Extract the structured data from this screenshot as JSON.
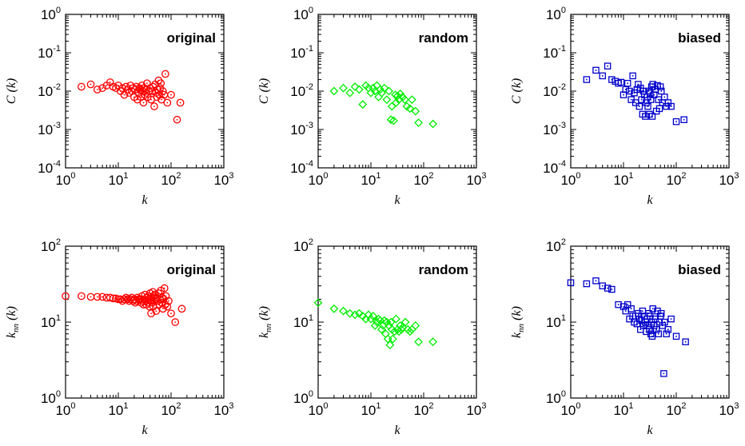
{
  "chart_data": [
    {
      "type": "scatter",
      "title": "original",
      "xlabel": "k",
      "ylabel": "C (k)",
      "xscale": "log",
      "yscale": "log",
      "xlim": [
        1,
        1000
      ],
      "ylim": [
        0.0001,
        1
      ],
      "x_tick_labels": [
        "10^0",
        "10^1",
        "10^2",
        "10^3"
      ],
      "y_tick_labels": [
        "10^-4",
        "10^-3",
        "10^-2",
        "10^-1",
        "10^0"
      ],
      "marker": "circle",
      "color": "#ff0000",
      "title_placement": "top-right",
      "series": [
        {
          "x": [
            2,
            3,
            4,
            5,
            6,
            7,
            8,
            9,
            10,
            11,
            12,
            13,
            14,
            15,
            16,
            17,
            18,
            19,
            20,
            21,
            22,
            23,
            24,
            25,
            26,
            27,
            28,
            29,
            30,
            31,
            32,
            33,
            34,
            35,
            36,
            38,
            40,
            42,
            44,
            46,
            48,
            50,
            52,
            54,
            56,
            58,
            60,
            62,
            64,
            66,
            70,
            74,
            78,
            85,
            100,
            130,
            150
          ],
          "y": [
            0.013,
            0.015,
            0.011,
            0.012,
            0.014,
            0.017,
            0.013,
            0.012,
            0.014,
            0.01,
            0.012,
            0.008,
            0.013,
            0.011,
            0.009,
            0.014,
            0.01,
            0.012,
            0.007,
            0.011,
            0.013,
            0.006,
            0.009,
            0.012,
            0.011,
            0.007,
            0.014,
            0.01,
            0.005,
            0.012,
            0.008,
            0.011,
            0.009,
            0.016,
            0.007,
            0.01,
            0.012,
            0.006,
            0.01,
            0.013,
            0.004,
            0.015,
            0.009,
            0.007,
            0.011,
            0.019,
            0.008,
            0.012,
            0.016,
            0.006,
            0.01,
            0.008,
            0.028,
            0.005,
            0.008,
            0.0018,
            0.005
          ]
        }
      ]
    },
    {
      "type": "scatter",
      "title": "random",
      "xlabel": "k",
      "ylabel": "C (k)",
      "xscale": "log",
      "yscale": "log",
      "xlim": [
        1,
        1000
      ],
      "ylim": [
        0.0001,
        1
      ],
      "x_tick_labels": [
        "10^0",
        "10^1",
        "10^2",
        "10^3"
      ],
      "y_tick_labels": [
        "10^-4",
        "10^-3",
        "10^-2",
        "10^-1",
        "10^0"
      ],
      "marker": "diamond",
      "color": "#00ee00",
      "title_placement": "top-right",
      "series": [
        {
          "x": [
            2,
            3,
            4,
            5,
            6,
            7,
            8,
            9,
            10,
            11,
            12,
            13,
            14,
            15,
            16,
            18,
            20,
            22,
            24,
            25,
            27,
            29,
            30,
            32,
            34,
            36,
            40,
            44,
            48,
            55,
            60,
            70,
            80,
            150
          ],
          "y": [
            0.01,
            0.012,
            0.009,
            0.013,
            0.011,
            0.0045,
            0.014,
            0.012,
            0.009,
            0.012,
            0.01,
            0.014,
            0.007,
            0.011,
            0.009,
            0.012,
            0.006,
            0.01,
            0.0018,
            0.004,
            0.0017,
            0.008,
            0.005,
            0.0075,
            0.006,
            0.0085,
            0.007,
            0.006,
            0.004,
            0.0035,
            0.006,
            0.003,
            0.0015,
            0.0014
          ]
        }
      ]
    },
    {
      "type": "scatter",
      "title": "biased",
      "xlabel": "k",
      "ylabel": "C (k)",
      "xscale": "log",
      "yscale": "log",
      "xlim": [
        1,
        1000
      ],
      "ylim": [
        0.0001,
        1
      ],
      "x_tick_labels": [
        "10^0",
        "10^1",
        "10^2",
        "10^3"
      ],
      "y_tick_labels": [
        "10^-4",
        "10^-3",
        "10^-2",
        "10^-1",
        "10^0"
      ],
      "marker": "square",
      "color": "#0000cc",
      "title_placement": "top-right",
      "series": [
        {
          "x": [
            2,
            3,
            4,
            5,
            6,
            7,
            8,
            9,
            10,
            11,
            12,
            13,
            14,
            15,
            16,
            17,
            18,
            19,
            20,
            21,
            22,
            23,
            24,
            25,
            26,
            27,
            28,
            29,
            30,
            31,
            32,
            33,
            34,
            35,
            36,
            38,
            40,
            42,
            44,
            46,
            48,
            50,
            52,
            55,
            60,
            65,
            70,
            80,
            100,
            140
          ],
          "y": [
            0.02,
            0.035,
            0.025,
            0.045,
            0.02,
            0.018,
            0.016,
            0.017,
            0.008,
            0.011,
            0.016,
            0.01,
            0.006,
            0.025,
            0.009,
            0.005,
            0.011,
            0.015,
            0.004,
            0.012,
            0.006,
            0.0025,
            0.01,
            0.008,
            0.0022,
            0.005,
            0.007,
            0.004,
            0.01,
            0.0025,
            0.009,
            0.006,
            0.013,
            0.0022,
            0.015,
            0.008,
            0.011,
            0.003,
            0.014,
            0.006,
            0.0035,
            0.013,
            0.01,
            0.005,
            0.007,
            0.004,
            0.005,
            0.004,
            0.0016,
            0.0018
          ]
        }
      ]
    },
    {
      "type": "scatter",
      "title": "original",
      "xlabel": "k",
      "ylabel": "k_nn (k)",
      "xscale": "log",
      "yscale": "log",
      "xlim": [
        1,
        1000
      ],
      "ylim": [
        1,
        100
      ],
      "x_tick_labels": [
        "10^0",
        "10^1",
        "10^2",
        "10^3"
      ],
      "y_tick_labels": [
        "10^0",
        "10^1",
        "10^2"
      ],
      "marker": "circle",
      "color": "#ff0000",
      "title_placement": "top-right",
      "series": [
        {
          "x": [
            1,
            2,
            3,
            4,
            5,
            6,
            7,
            8,
            9,
            10,
            11,
            12,
            13,
            14,
            15,
            16,
            17,
            18,
            19,
            20,
            21,
            22,
            23,
            24,
            25,
            26,
            27,
            28,
            29,
            30,
            31,
            32,
            33,
            34,
            35,
            36,
            37,
            38,
            39,
            40,
            41,
            42,
            43,
            44,
            45,
            46,
            47,
            48,
            49,
            50,
            52,
            54,
            56,
            58,
            60,
            62,
            64,
            66,
            68,
            70,
            72,
            75,
            78,
            80,
            85,
            90,
            100,
            120,
            160
          ],
          "y": [
            22,
            22,
            21.5,
            21.5,
            21.5,
            21,
            21,
            20.5,
            20.5,
            20,
            20,
            19,
            20,
            21,
            20,
            19,
            20,
            21,
            19,
            20,
            18,
            19,
            21,
            20,
            19.5,
            20,
            18,
            22,
            19,
            17,
            20,
            23,
            19,
            17,
            21,
            18,
            22,
            20,
            16,
            24,
            19,
            13,
            21,
            18,
            25,
            16,
            22,
            19,
            23,
            20,
            14,
            21,
            19,
            24,
            17,
            20,
            26,
            18,
            21,
            15,
            20,
            28,
            17,
            22,
            16,
            19,
            13,
            10,
            15
          ]
        }
      ]
    },
    {
      "type": "scatter",
      "title": "random",
      "xlabel": "k",
      "ylabel": "k_nn (k)",
      "xscale": "log",
      "yscale": "log",
      "xlim": [
        1,
        1000
      ],
      "ylim": [
        1,
        100
      ],
      "x_tick_labels": [
        "10^0",
        "10^1",
        "10^2",
        "10^3"
      ],
      "y_tick_labels": [
        "10^0",
        "10^1",
        "10^2"
      ],
      "marker": "diamond",
      "color": "#00ee00",
      "title_placement": "top-right",
      "series": [
        {
          "x": [
            1,
            2,
            3,
            4,
            5,
            6,
            7,
            8,
            9,
            10,
            11,
            12,
            13,
            14,
            15,
            16,
            17,
            18,
            19,
            20,
            21,
            22,
            23,
            24,
            25,
            26,
            28,
            30,
            32,
            34,
            36,
            38,
            40,
            45,
            50,
            55,
            60,
            70,
            80,
            150
          ],
          "y": [
            18,
            15,
            14,
            13,
            12.5,
            13,
            12,
            11,
            12.5,
            11,
            12,
            9,
            10,
            11,
            10.5,
            8,
            9,
            10.5,
            7,
            10,
            6,
            9,
            5,
            10,
            8,
            6,
            7.5,
            11,
            8,
            7.5,
            9,
            8,
            8.5,
            10,
            8,
            7.5,
            8,
            9,
            5.5,
            5.5
          ]
        }
      ]
    },
    {
      "type": "scatter",
      "title": "biased",
      "xlabel": "k",
      "ylabel": "k_nn (k)",
      "xscale": "log",
      "yscale": "log",
      "xlim": [
        1,
        1000
      ],
      "ylim": [
        1,
        100
      ],
      "x_tick_labels": [
        "10^0",
        "10^1",
        "10^2",
        "10^3"
      ],
      "y_tick_labels": [
        "10^0",
        "10^1",
        "10^2"
      ],
      "marker": "square",
      "color": "#0000cc",
      "title_placement": "top-right",
      "series": [
        {
          "x": [
            1,
            2,
            3,
            4,
            5,
            6,
            8,
            10,
            11,
            12,
            13,
            14,
            15,
            16,
            17,
            18,
            19,
            20,
            21,
            22,
            23,
            24,
            25,
            26,
            27,
            28,
            29,
            30,
            31,
            32,
            33,
            34,
            35,
            36,
            38,
            40,
            42,
            44,
            46,
            48,
            50,
            52,
            55,
            58,
            60,
            65,
            70,
            80,
            100,
            150
          ],
          "y": [
            33,
            32,
            35,
            30,
            28,
            27,
            17,
            16,
            14,
            17,
            11,
            15,
            12,
            10,
            12,
            9.5,
            13,
            11,
            8,
            10.5,
            14,
            9,
            12,
            10,
            7.5,
            11,
            9,
            13,
            8,
            12,
            7,
            10,
            6.5,
            15,
            9,
            11,
            8,
            14,
            7,
            10,
            12,
            13,
            9,
            2.1,
            10,
            7,
            8,
            11,
            6.5,
            5.5
          ]
        }
      ]
    }
  ]
}
